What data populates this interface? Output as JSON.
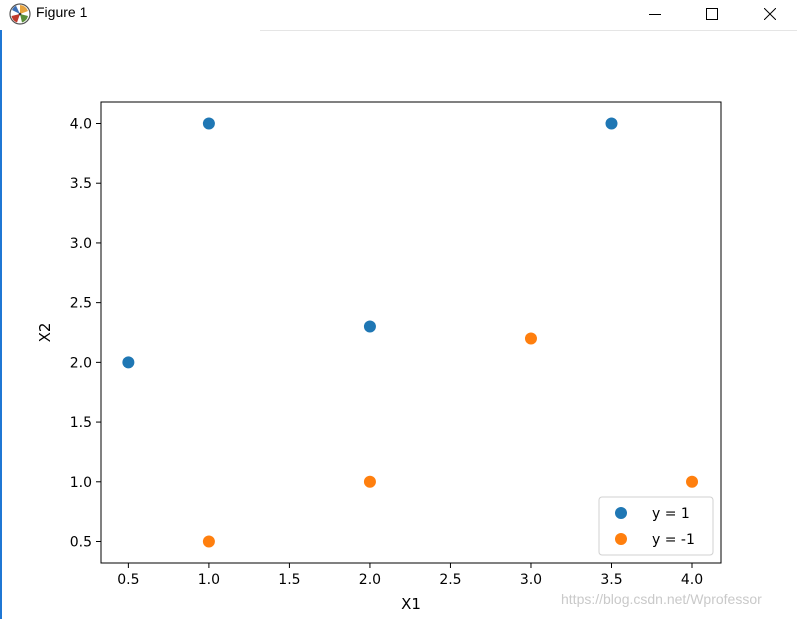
{
  "window": {
    "title": "Figure 1"
  },
  "watermark": "https://blog.csdn.net/Wprofessor",
  "colors": {
    "series1": "#1f77b4",
    "series2": "#ff7f0e",
    "axis": "#000000"
  },
  "chart_data": {
    "type": "scatter",
    "title": "",
    "xlabel": "X1",
    "ylabel": "X2",
    "xlim": [
      0.33,
      4.18
    ],
    "ylim": [
      0.32,
      4.18
    ],
    "xticks": [
      "0.5",
      "1.0",
      "1.5",
      "2.0",
      "2.5",
      "3.0",
      "3.5",
      "4.0"
    ],
    "yticks": [
      "0.5",
      "1.0",
      "1.5",
      "2.0",
      "2.5",
      "3.0",
      "3.5",
      "4.0"
    ],
    "grid": false,
    "legend_position": "lower right",
    "series": [
      {
        "name": "y = 1",
        "color": "#1f77b4",
        "x": [
          1.0,
          3.5,
          2.0,
          0.5
        ],
        "y": [
          4.0,
          4.0,
          2.3,
          2.0
        ]
      },
      {
        "name": "y = -1",
        "color": "#ff7f0e",
        "x": [
          3.0,
          2.0,
          4.0,
          1.0
        ],
        "y": [
          2.2,
          1.0,
          1.0,
          0.5
        ]
      }
    ]
  }
}
